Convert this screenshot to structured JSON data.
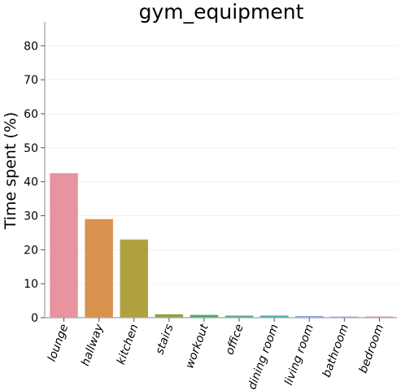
{
  "chart_data": {
    "type": "bar",
    "title": "gym_equipment",
    "xlabel": "",
    "ylabel": "Time spent (%)",
    "ylim": [
      0,
      87
    ],
    "yticks": [
      0,
      10,
      20,
      30,
      40,
      50,
      60,
      70,
      80
    ],
    "grid": true,
    "categories": [
      "lounge",
      "hallway",
      "kitchen",
      "stairs",
      "workout",
      "office",
      "dining room",
      "living room",
      "bathroom",
      "bedroom"
    ],
    "values": [
      42.5,
      29.0,
      23.0,
      1.0,
      0.8,
      0.6,
      0.6,
      0.5,
      0.35,
      0.35
    ],
    "colors": [
      "#e8939f",
      "#d9924e",
      "#b0a140",
      "#8ea03d",
      "#4aa36a",
      "#47a78f",
      "#4ba4a8",
      "#7fa6dc",
      "#c495dc",
      "#d88fc3"
    ]
  }
}
